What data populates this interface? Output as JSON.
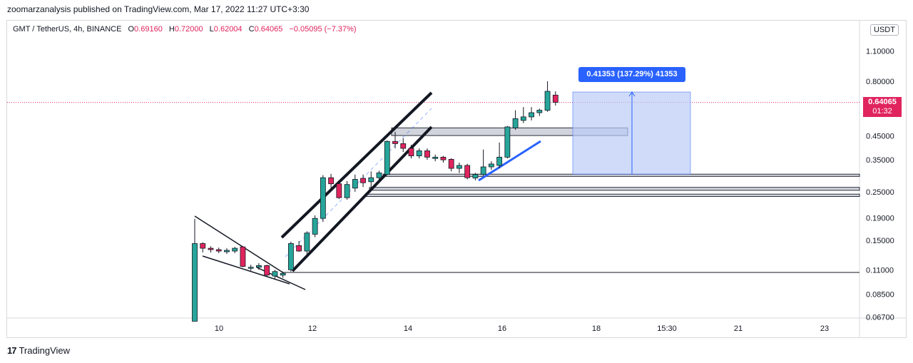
{
  "publisher_line": "zoomarzanalysis published on TradingView.com, Mar 17, 2022 11:27 UTC+3:30",
  "symbol": {
    "name": "GMT / TetherUS, 4h, BINANCE",
    "open_label": "O",
    "open": "0.69160",
    "high_label": "H",
    "high": "0.72000",
    "low_label": "L",
    "low": "0.62004",
    "close_label": "C",
    "close": "0.64065",
    "change": "−0.05095 (−7.37%)"
  },
  "currency_label": "USDT",
  "price_tag": {
    "price": "0.64065",
    "timer": "01:32"
  },
  "measure_label": "0.41353 (137.29%) 41353",
  "logo_text": "TradingView",
  "colors": {
    "up": "#26a69a",
    "down": "#e0245e",
    "measure": "#2962ff",
    "measure_fill": "#bcccf7",
    "current_price": "#e0245e"
  },
  "chart_data": {
    "type": "candlestick",
    "y_scale": "log",
    "y_ticks": [
      "1.10000",
      "0.80000",
      "0.45000",
      "0.35000",
      "0.25000",
      "0.19000",
      "0.15000",
      "0.11000",
      "0.08500",
      "0.06700"
    ],
    "x_ticks": [
      "10",
      "12",
      "14",
      "16",
      "18",
      "15:30",
      "21",
      "23"
    ],
    "candles": [
      {
        "o": 0.064,
        "h": 0.188,
        "l": 0.064,
        "c": 0.145
      },
      {
        "o": 0.145,
        "h": 0.147,
        "l": 0.132,
        "c": 0.138
      },
      {
        "o": 0.138,
        "h": 0.141,
        "l": 0.132,
        "c": 0.136
      },
      {
        "o": 0.136,
        "h": 0.139,
        "l": 0.131,
        "c": 0.134
      },
      {
        "o": 0.133,
        "h": 0.138,
        "l": 0.13,
        "c": 0.135
      },
      {
        "o": 0.134,
        "h": 0.14,
        "l": 0.131,
        "c": 0.138
      },
      {
        "o": 0.14,
        "h": 0.141,
        "l": 0.113,
        "c": 0.114
      },
      {
        "o": 0.112,
        "h": 0.116,
        "l": 0.109,
        "c": 0.113
      },
      {
        "o": 0.113,
        "h": 0.118,
        "l": 0.11,
        "c": 0.115
      },
      {
        "o": 0.115,
        "h": 0.116,
        "l": 0.103,
        "c": 0.104
      },
      {
        "o": 0.103,
        "h": 0.11,
        "l": 0.099,
        "c": 0.108
      },
      {
        "o": 0.104,
        "h": 0.108,
        "l": 0.101,
        "c": 0.106
      },
      {
        "o": 0.11,
        "h": 0.148,
        "l": 0.108,
        "c": 0.145
      },
      {
        "o": 0.142,
        "h": 0.149,
        "l": 0.133,
        "c": 0.134
      },
      {
        "o": 0.134,
        "h": 0.165,
        "l": 0.13,
        "c": 0.162
      },
      {
        "o": 0.16,
        "h": 0.195,
        "l": 0.155,
        "c": 0.189
      },
      {
        "o": 0.189,
        "h": 0.298,
        "l": 0.182,
        "c": 0.29
      },
      {
        "o": 0.29,
        "h": 0.302,
        "l": 0.26,
        "c": 0.272
      },
      {
        "o": 0.272,
        "h": 0.281,
        "l": 0.232,
        "c": 0.235
      },
      {
        "o": 0.235,
        "h": 0.28,
        "l": 0.23,
        "c": 0.27
      },
      {
        "o": 0.26,
        "h": 0.3,
        "l": 0.25,
        "c": 0.285
      },
      {
        "o": 0.288,
        "h": 0.3,
        "l": 0.263,
        "c": 0.275
      },
      {
        "o": 0.278,
        "h": 0.31,
        "l": 0.262,
        "c": 0.29
      },
      {
        "o": 0.29,
        "h": 0.312,
        "l": 0.275,
        "c": 0.305
      },
      {
        "o": 0.3,
        "h": 0.43,
        "l": 0.298,
        "c": 0.425
      },
      {
        "o": 0.425,
        "h": 0.47,
        "l": 0.395,
        "c": 0.415
      },
      {
        "o": 0.415,
        "h": 0.44,
        "l": 0.38,
        "c": 0.395
      },
      {
        "o": 0.395,
        "h": 0.41,
        "l": 0.355,
        "c": 0.365
      },
      {
        "o": 0.365,
        "h": 0.395,
        "l": 0.355,
        "c": 0.385
      },
      {
        "o": 0.385,
        "h": 0.395,
        "l": 0.35,
        "c": 0.36
      },
      {
        "o": 0.355,
        "h": 0.37,
        "l": 0.345,
        "c": 0.36
      },
      {
        "o": 0.36,
        "h": 0.365,
        "l": 0.34,
        "c": 0.35
      },
      {
        "o": 0.352,
        "h": 0.356,
        "l": 0.31,
        "c": 0.32
      },
      {
        "o": 0.32,
        "h": 0.34,
        "l": 0.305,
        "c": 0.33
      },
      {
        "o": 0.33,
        "h": 0.336,
        "l": 0.285,
        "c": 0.29
      },
      {
        "o": 0.289,
        "h": 0.305,
        "l": 0.282,
        "c": 0.3
      },
      {
        "o": 0.3,
        "h": 0.39,
        "l": 0.295,
        "c": 0.325
      },
      {
        "o": 0.325,
        "h": 0.345,
        "l": 0.315,
        "c": 0.335
      },
      {
        "o": 0.33,
        "h": 0.42,
        "l": 0.32,
        "c": 0.36
      },
      {
        "o": 0.36,
        "h": 0.5,
        "l": 0.355,
        "c": 0.495
      },
      {
        "o": 0.49,
        "h": 0.59,
        "l": 0.48,
        "c": 0.54
      },
      {
        "o": 0.53,
        "h": 0.61,
        "l": 0.515,
        "c": 0.55
      },
      {
        "o": 0.55,
        "h": 0.61,
        "l": 0.53,
        "c": 0.575
      },
      {
        "o": 0.575,
        "h": 0.6,
        "l": 0.555,
        "c": 0.59
      },
      {
        "o": 0.59,
        "h": 0.8,
        "l": 0.58,
        "c": 0.72
      },
      {
        "o": 0.692,
        "h": 0.72,
        "l": 0.62,
        "c": 0.641
      }
    ],
    "current_price": 0.64065,
    "measure": {
      "from_price": 0.3012,
      "to_price": 0.7147,
      "change": "0.41353 (137.29%) 41353"
    },
    "zones": [
      {
        "top": 0.49,
        "bottom": 0.452
      },
      {
        "top": 0.301,
        "bottom": 0.294
      },
      {
        "top": 0.262,
        "bottom": 0.254
      },
      {
        "top": 0.244,
        "bottom": 0.238
      }
    ],
    "support_line_price": 0.107
  }
}
